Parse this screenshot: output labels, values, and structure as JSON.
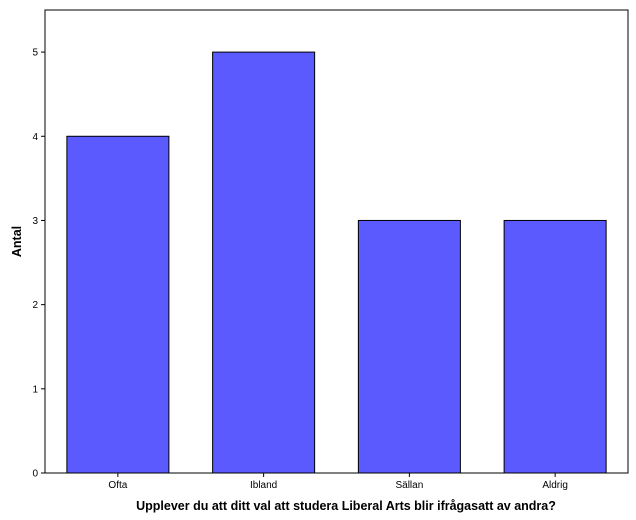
{
  "chart_data": {
    "type": "bar",
    "categories": [
      "Ofta",
      "Ibland",
      "Sällan",
      "Aldrig"
    ],
    "values": [
      4,
      5,
      3,
      3
    ],
    "title": "",
    "xlabel": "Upplever du att ditt val att studera Liberal Arts blir ifrågasatt av andra?",
    "ylabel": "Antal",
    "ylim": [
      0,
      5.5
    ],
    "yticks": [
      "0",
      "1",
      "2",
      "3",
      "4",
      "5"
    ],
    "grid": false,
    "legend": "none",
    "bar_color": "#5a5aff",
    "bar_edge_color": "#000000"
  }
}
